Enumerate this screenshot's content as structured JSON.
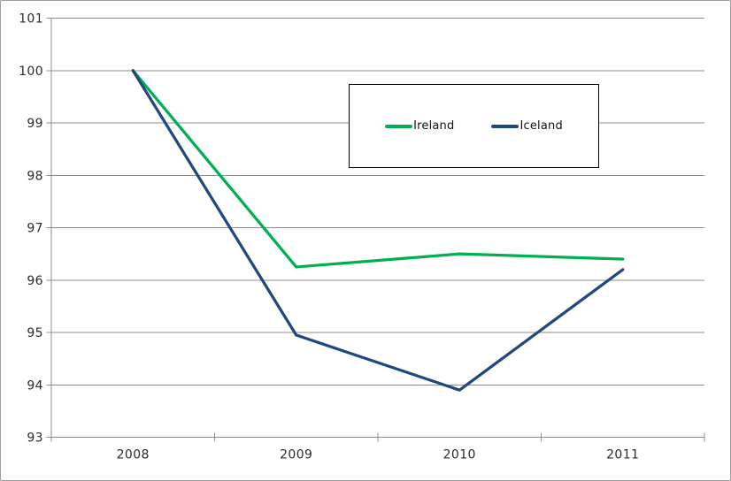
{
  "chart_data": {
    "type": "line",
    "title": "",
    "xlabel": "",
    "ylabel": "",
    "categories": [
      "2008",
      "2009",
      "2010",
      "2011"
    ],
    "series": [
      {
        "name": "Ireland",
        "color": "#00B050",
        "values": [
          100,
          96.25,
          96.5,
          96.4
        ]
      },
      {
        "name": "Iceland",
        "color": "#1F497D",
        "values": [
          100,
          94.95,
          93.9,
          96.2
        ]
      }
    ],
    "ylim": [
      93,
      101
    ],
    "ytick_step": 1,
    "yticks": [
      "93",
      "94",
      "95",
      "96",
      "97",
      "98",
      "99",
      "100",
      "101"
    ],
    "grid": true,
    "legend_position": "top-center-boxed",
    "legend_entries": [
      "Ireland",
      "Iceland"
    ]
  },
  "colors": {
    "grid": "#8c8c8c",
    "axis": "#8c8c8c",
    "tick_text": "#2b2b2b",
    "background": "#ffffff",
    "frame_border": "#9b9b9b",
    "legend_border": "#000000",
    "legend_background": "#ffffff",
    "ireland_line": "#00B050",
    "iceland_line": "#1F497D"
  }
}
